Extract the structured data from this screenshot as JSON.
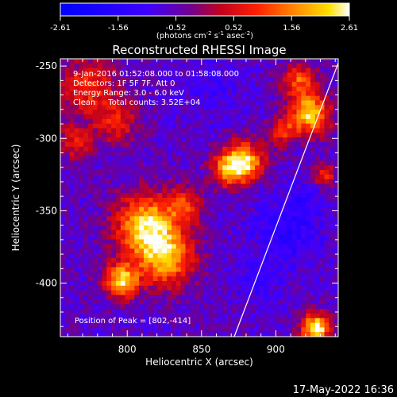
{
  "colorbar": {
    "ticks": [
      "-2.61",
      "-1.56",
      "-0.52",
      "0.52",
      "1.56",
      "2.61"
    ],
    "units_main": "(photons cm",
    "units_exp1": "-2",
    "units_mid1": " s",
    "units_exp2": "-1",
    "units_mid2": " asec",
    "units_exp3": "-2",
    "units_end": ")"
  },
  "annotations": {
    "line1": "9-Jan-2016 01:52:08.000 to 01:58:08.000",
    "line2": "Detectors: 1F 5F 7F, Att 0",
    "line3": "Energy Range: 3.0 - 6.0 keV",
    "line4": "Clean     Total counts: 3.52E+04",
    "peak": "Position of Peak = [802,-414]"
  },
  "timestamp": "17-May-2022 16:36",
  "chart_data": {
    "type": "heatmap",
    "title": "Reconstructed RHESSI Image",
    "xlabel": "Heliocentric X (arcsec)",
    "ylabel": "Heliocentric Y (arcsec)",
    "xlim": [
      755,
      942
    ],
    "ylim": [
      -437,
      -245
    ],
    "xticks": [
      "800",
      "850",
      "900"
    ],
    "yticks": [
      "-250",
      "-300",
      "-350",
      "-400"
    ],
    "xtick_values": [
      800,
      850,
      900
    ],
    "ytick_values": [
      -250,
      -300,
      -350,
      -400
    ],
    "color_range": [
      -2.61,
      2.61
    ],
    "colormap": [
      "#0000ff",
      "#6a1bb0",
      "#ff0000",
      "#ff7800",
      "#ffff00",
      "#ffffff"
    ],
    "limb_line": [
      [
        872,
        -437
      ],
      [
        942,
        -248
      ]
    ]
  }
}
